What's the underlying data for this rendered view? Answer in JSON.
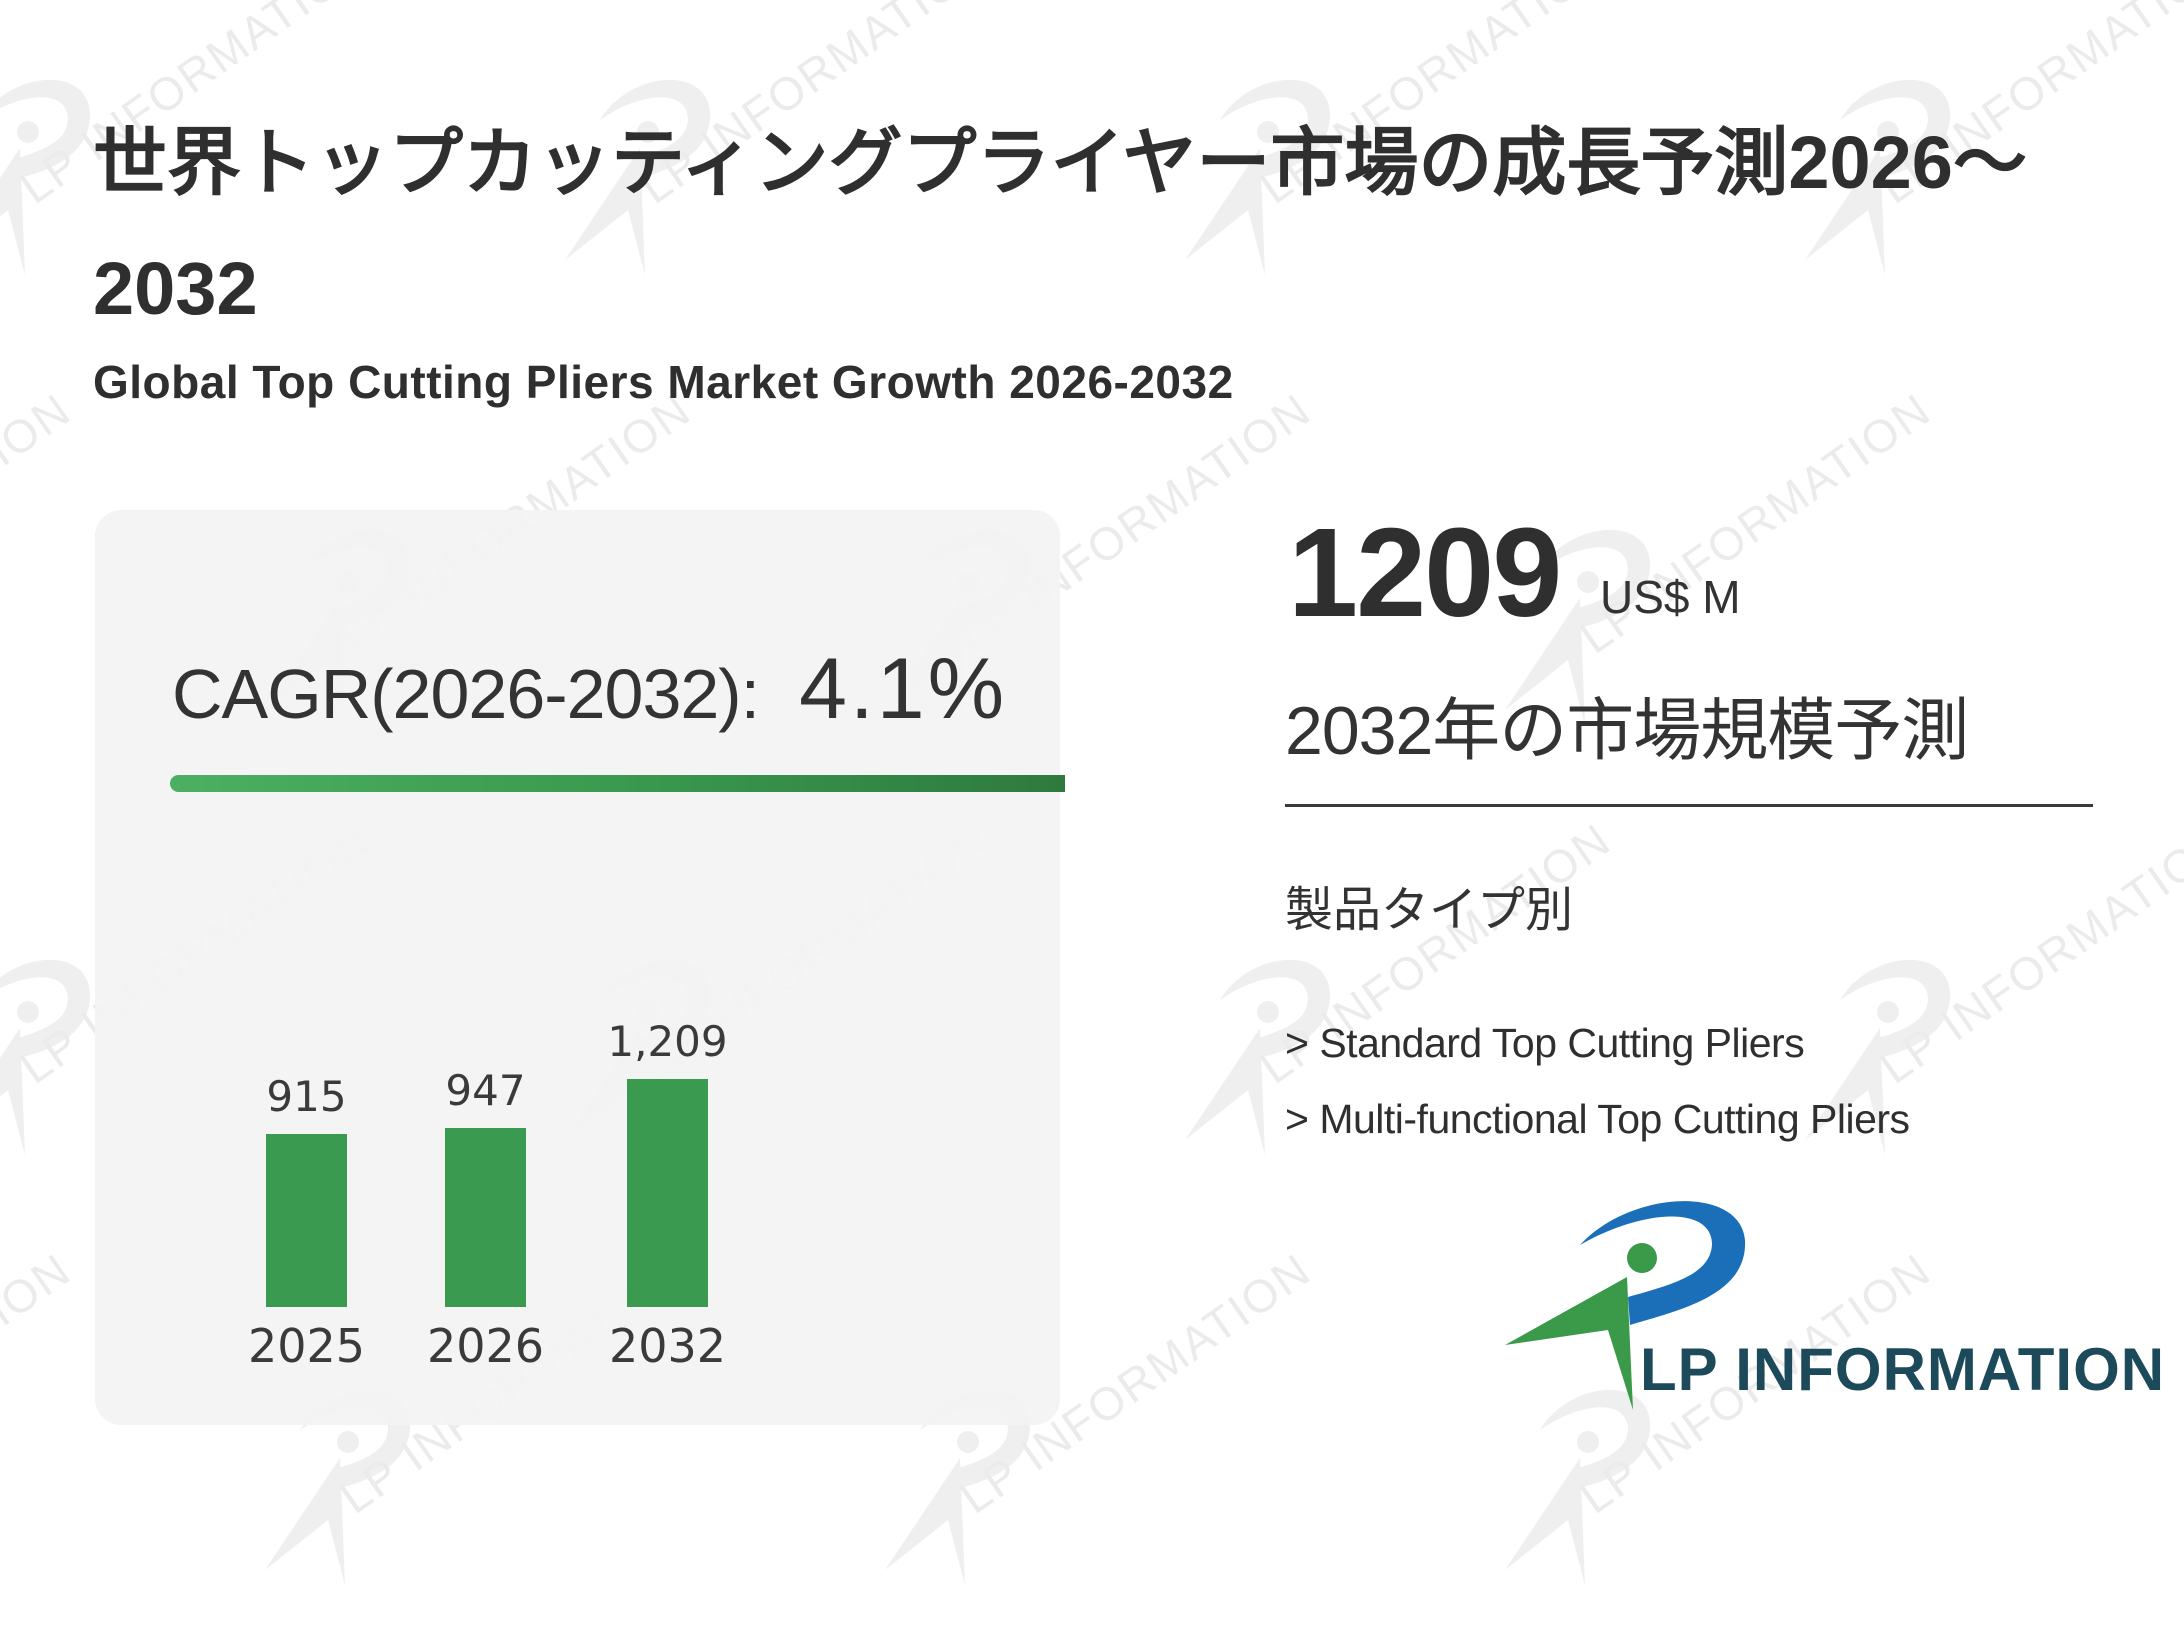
{
  "header": {
    "title": "世界トップカッティングプライヤー市場の成長予測2026～2032",
    "subtitle": "Global Top Cutting Pliers Market Growth 2026-2032"
  },
  "cagr": {
    "label": "CAGR(2026-2032):",
    "value": "4.1%"
  },
  "summary": {
    "market_size_value": "1209",
    "market_size_unit": "US$ M",
    "market_size_label": "2032年の市場規模予測"
  },
  "segments": {
    "title": "製品タイプ別",
    "items": [
      "> Standard Top Cutting Pliers",
      "> Multi-functional Top Cutting Pliers"
    ]
  },
  "logo": {
    "text": "LP INFORMATION",
    "icon": "lp-information-logo-icon"
  },
  "watermark": {
    "text": "LP INFORMATION"
  },
  "colors": {
    "bar": "#3a9a4f",
    "accent_bar_start": "#4caf62",
    "accent_bar_end": "#2e7a3e",
    "logo_blue": "#1a6fb8",
    "logo_green": "#3a9a4a",
    "logo_text": "#1d4a5a",
    "card_bg": "#f3f3f3"
  },
  "chart_data": {
    "type": "bar",
    "title": "Global Top Cutting Pliers Market Growth 2026-2032",
    "categories": [
      "2025",
      "2026",
      "2032"
    ],
    "values": [
      915,
      947,
      1209
    ],
    "value_labels": [
      "915",
      "947",
      "1,209"
    ],
    "unit": "US$ M",
    "xlabel": "",
    "ylabel": "",
    "grid": false,
    "legend": "none",
    "annotations": [
      "CAGR(2026-2032): 4.1%"
    ]
  }
}
